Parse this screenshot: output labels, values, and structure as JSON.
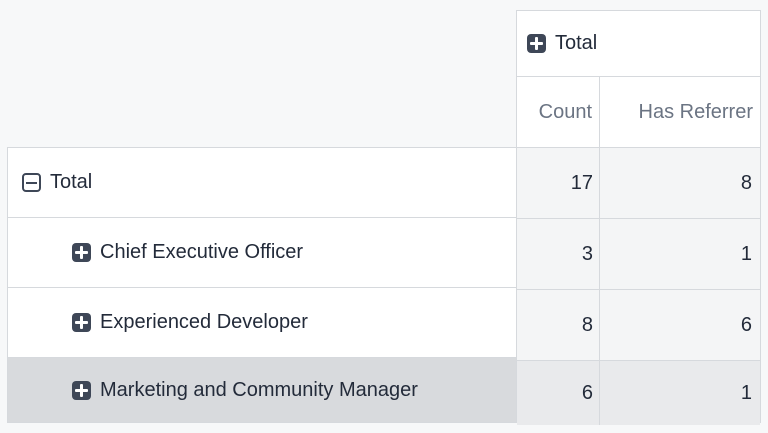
{
  "pivot": {
    "column_group": {
      "label": "Total",
      "expand_icon": "plus-square-icon",
      "state": "collapsed"
    },
    "measures": [
      {
        "label": "Count"
      },
      {
        "label": "Has Referrer"
      }
    ],
    "rows": [
      {
        "label": "Total",
        "toggle_icon": "minus-square-icon",
        "state": "expanded",
        "level": 0,
        "values": [
          "17",
          "8"
        ],
        "highlighted": false
      },
      {
        "label": "Chief Executive Officer",
        "toggle_icon": "plus-square-icon",
        "state": "collapsed",
        "level": 1,
        "values": [
          "3",
          "1"
        ],
        "highlighted": false
      },
      {
        "label": "Experienced Developer",
        "toggle_icon": "plus-square-icon",
        "state": "collapsed",
        "level": 1,
        "values": [
          "8",
          "6"
        ],
        "highlighted": false
      },
      {
        "label": "Marketing and Community Manager",
        "toggle_icon": "plus-square-icon",
        "state": "collapsed",
        "level": 1,
        "values": [
          "6",
          "1"
        ],
        "highlighted": true
      }
    ],
    "colors": {
      "icon_dark": "#3e4757",
      "text_dark": "#232b3a",
      "muted_header_text": "#6b7483",
      "grid_border": "#d6d9dd",
      "data_cell_bg": "#f4f5f6",
      "selected_label_bg": "#d8dadd",
      "selected_data_bg": "#e9eaec",
      "page_bg": "#f7f8f9"
    }
  }
}
